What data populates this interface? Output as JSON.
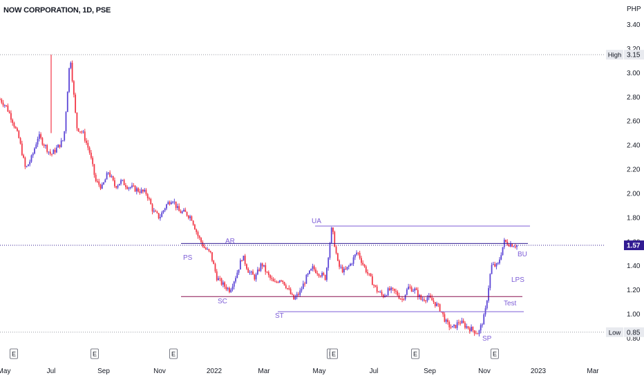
{
  "chart_data": {
    "type": "candlestick",
    "title": "NOW CORPORATION, 1D, PSE",
    "currency": "PHP",
    "y_ticks": [
      0.8,
      1.0,
      1.2,
      1.4,
      1.6,
      1.8,
      2.0,
      2.2,
      2.4,
      2.6,
      2.8,
      3.0,
      3.2,
      3.4
    ],
    "y_range": [
      0.78,
      3.46
    ],
    "x_ticks": [
      "May",
      "Jul",
      "Sep",
      "Nov",
      "2022",
      "Mar",
      "May",
      "Jul",
      "Sep",
      "Nov",
      "2023",
      "Mar"
    ],
    "last_price": 1.57,
    "high": {
      "label": "High",
      "value": 3.15
    },
    "low": {
      "label": "Low",
      "value": 0.85
    },
    "colors": {
      "up": "#5b45d6",
      "down": "#f23645",
      "line": "#7c5cd6",
      "dark_line": "#880e4f",
      "price_badge": "#311b92"
    },
    "earnings_marker": "E",
    "earnings_count": 7,
    "price_path": [
      2.78,
      2.72,
      2.6,
      2.45,
      2.2,
      2.3,
      2.48,
      2.4,
      2.32,
      2.38,
      2.45,
      3.15,
      2.55,
      2.5,
      2.35,
      2.1,
      2.05,
      2.18,
      2.06,
      2.1,
      2.06,
      2.04,
      2.02,
      2.0,
      1.85,
      1.8,
      1.9,
      1.96,
      1.85,
      1.84,
      1.8,
      1.65,
      1.55,
      1.5,
      1.3,
      1.24,
      1.2,
      1.32,
      1.48,
      1.35,
      1.3,
      1.42,
      1.32,
      1.25,
      1.3,
      1.22,
      1.12,
      1.18,
      1.3,
      1.38,
      1.34,
      1.3,
      1.72,
      1.4,
      1.35,
      1.42,
      1.52,
      1.4,
      1.3,
      1.2,
      1.15,
      1.2,
      1.18,
      1.12,
      1.22,
      1.2,
      1.12,
      1.14,
      1.1,
      1.04,
      0.92,
      0.88,
      0.94,
      0.9,
      0.87,
      0.84,
      1.0,
      1.4,
      1.4,
      1.6,
      1.58,
      1.57
    ],
    "annotations": [
      {
        "text": "PS",
        "color": "#7c5cd6"
      },
      {
        "text": "AR",
        "color": "#7c5cd6"
      },
      {
        "text": "SC",
        "color": "#7c5cd6"
      },
      {
        "text": "ST",
        "color": "#7c5cd6"
      },
      {
        "text": "UA",
        "color": "#7c5cd6"
      },
      {
        "text": "SP",
        "color": "#7c5cd6"
      },
      {
        "text": "Test",
        "color": "#7c5cd6"
      },
      {
        "text": "LPS",
        "color": "#7c5cd6"
      },
      {
        "text": "BU",
        "color": "#7c5cd6"
      }
    ],
    "levels": [
      {
        "name": "ua-line",
        "value": 1.73
      },
      {
        "name": "ar-line",
        "value": 1.585
      },
      {
        "name": "sc-line",
        "value": 1.145
      },
      {
        "name": "st-line",
        "value": 1.02
      }
    ]
  }
}
